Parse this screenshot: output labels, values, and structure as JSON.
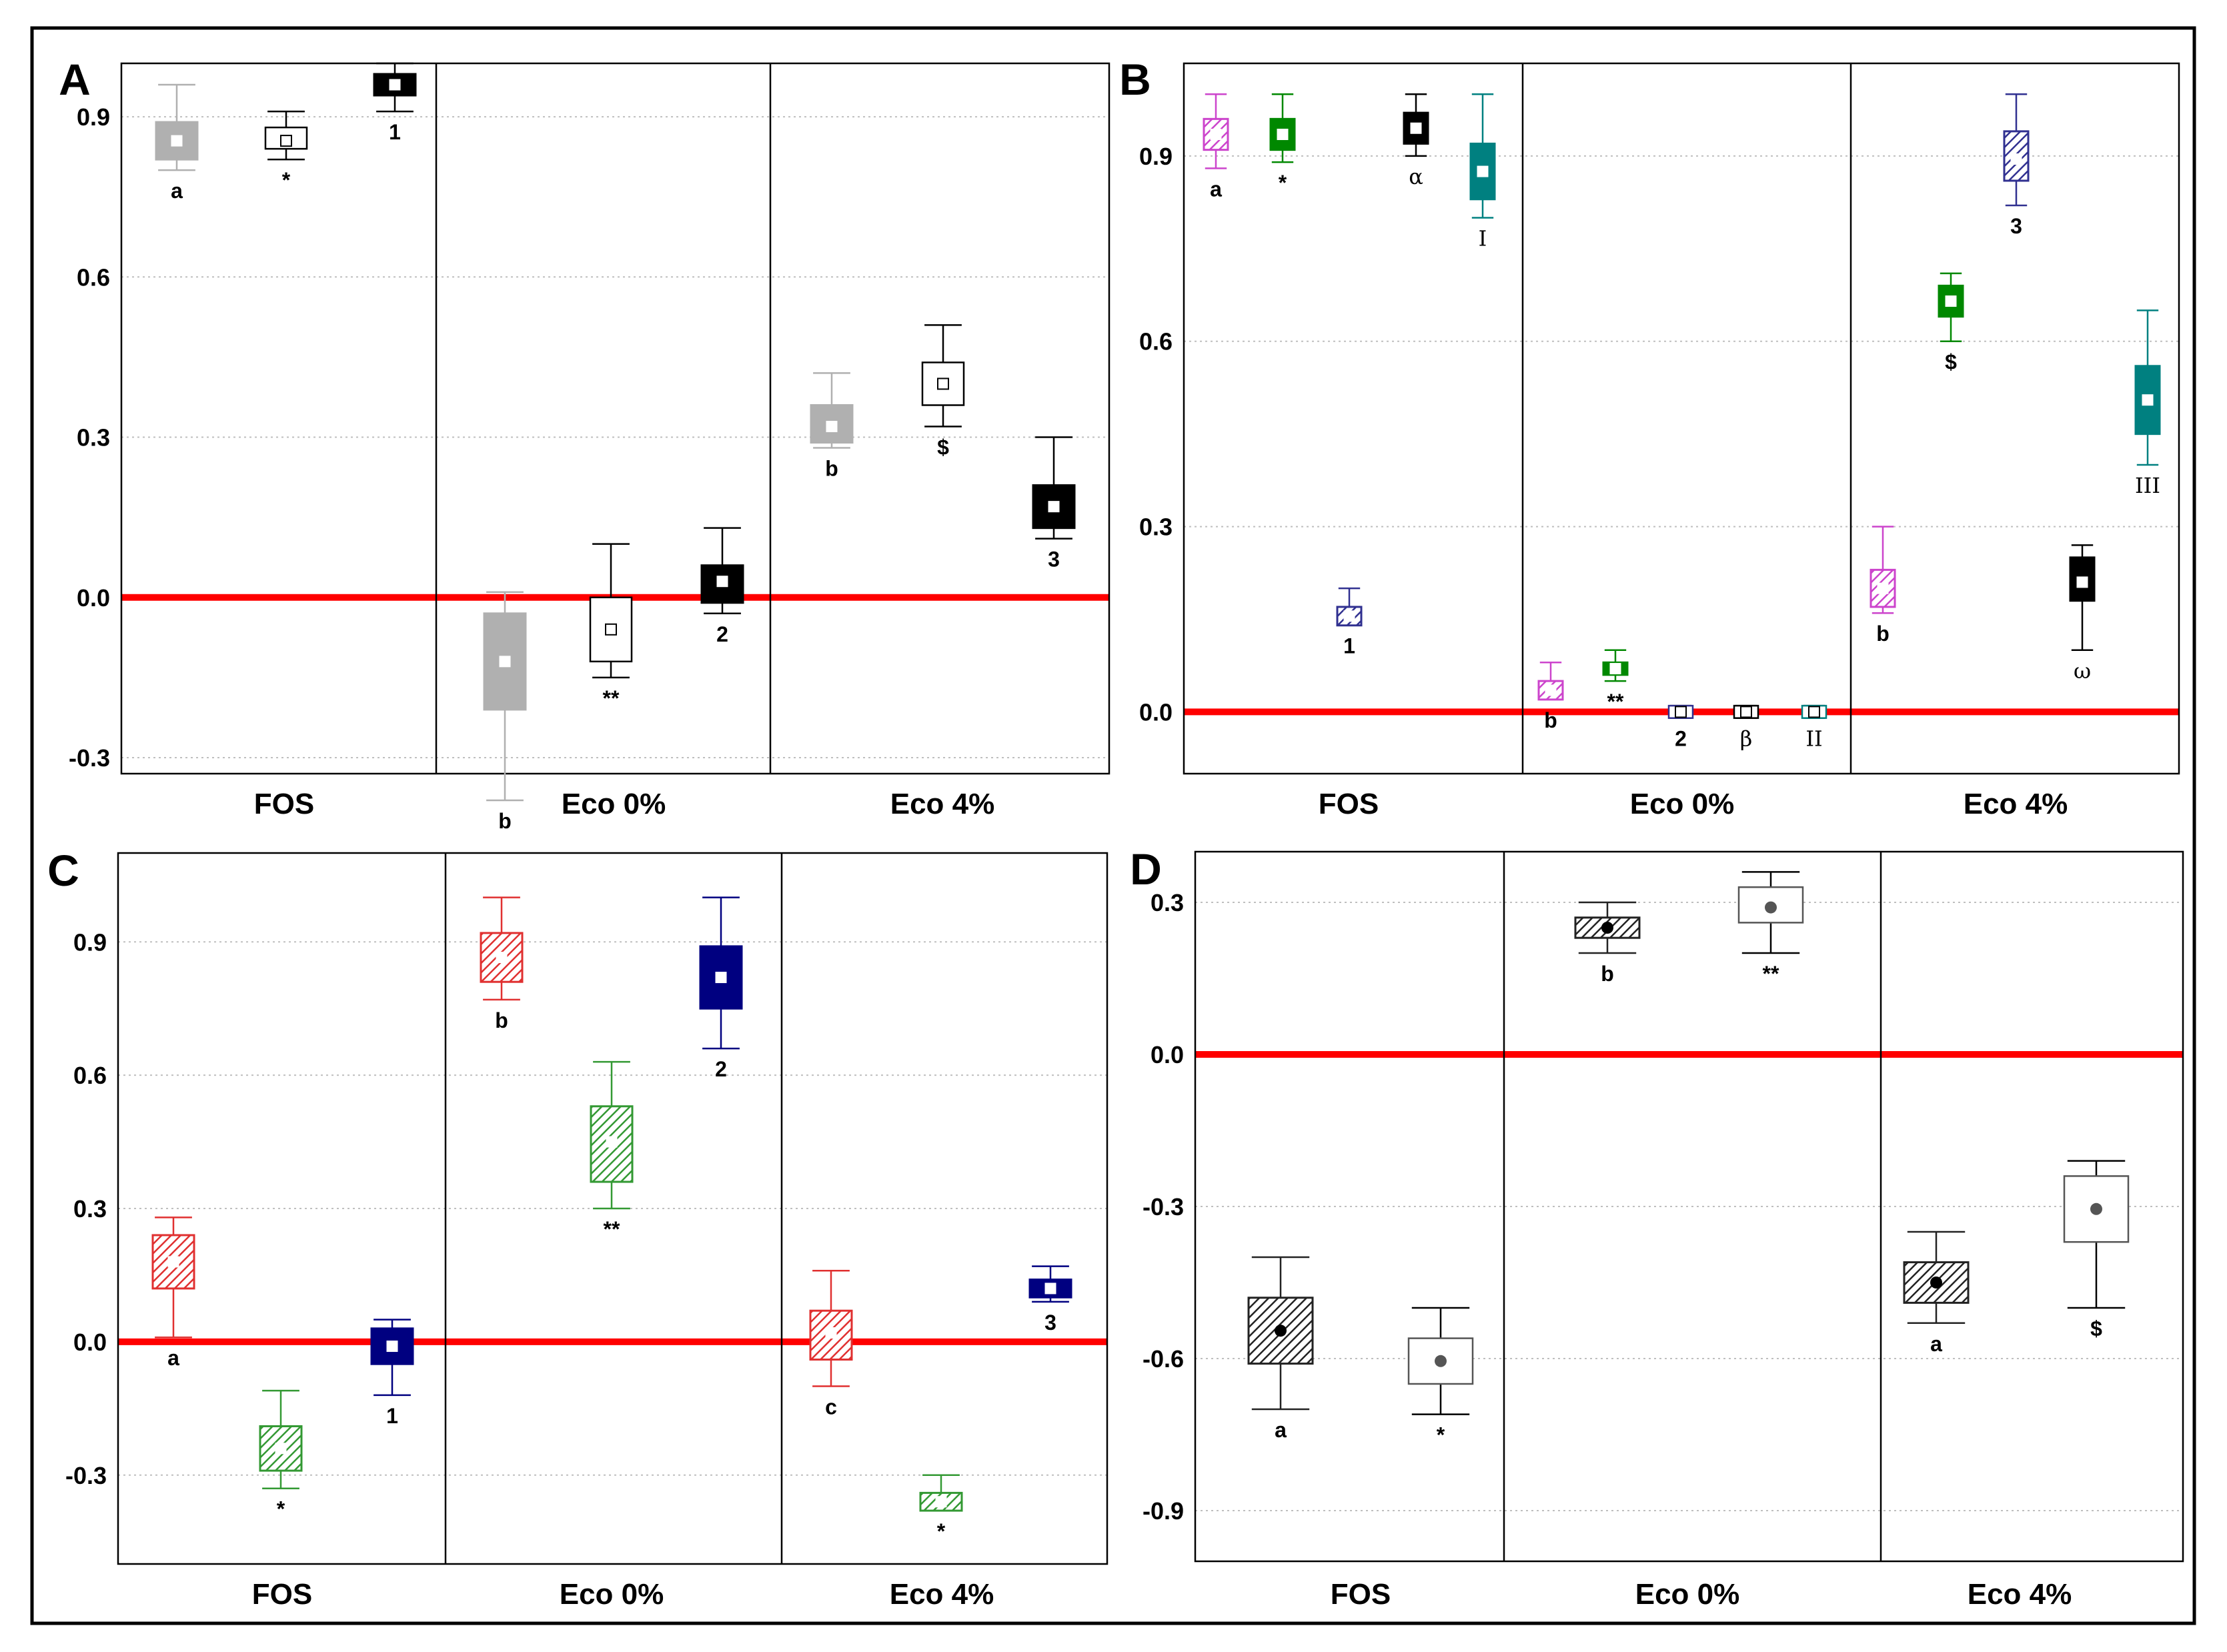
{
  "figure": {
    "panel_letters": [
      "A",
      "B",
      "C",
      "D"
    ],
    "group_labels": [
      "FOS",
      "Eco 0%",
      "Eco 4%"
    ]
  },
  "chart_data": [
    {
      "type": "box",
      "panel": "A",
      "title": "",
      "xlabel": "",
      "ylabel": "",
      "ylim": [
        -0.33,
        1.0
      ],
      "yticks": [
        -0.3,
        0.0,
        0.3,
        0.6,
        0.9
      ],
      "ytick_labels": [
        "-0.3",
        "0.0",
        "0.3",
        "0.6",
        "0.9"
      ],
      "groups": [
        "FOS",
        "Eco 0%",
        "Eco 4%"
      ],
      "reference_line": 0.0,
      "grid": true,
      "boxes": [
        {
          "group": "FOS",
          "slot": 0,
          "color": "#b0b0b0",
          "style": "solid",
          "q1": 0.82,
          "q3": 0.89,
          "mean": 0.855,
          "min": 0.8,
          "max": 0.96,
          "label": "a"
        },
        {
          "group": "FOS",
          "slot": 1,
          "color": "#000000",
          "style": "open",
          "q1": 0.84,
          "q3": 0.88,
          "mean": 0.855,
          "min": 0.82,
          "max": 0.91,
          "label": "*"
        },
        {
          "group": "FOS",
          "slot": 2,
          "color": "#000000",
          "style": "solid",
          "q1": 0.94,
          "q3": 0.98,
          "mean": 0.96,
          "min": 0.91,
          "max": 1.0,
          "label": "1"
        },
        {
          "group": "Eco 0%",
          "slot": 0,
          "color": "#b0b0b0",
          "style": "solid",
          "q1": -0.21,
          "q3": -0.03,
          "mean": -0.12,
          "min": -0.38,
          "max": 0.01,
          "label": "b"
        },
        {
          "group": "Eco 0%",
          "slot": 1,
          "color": "#000000",
          "style": "open",
          "q1": -0.12,
          "q3": 0.0,
          "mean": -0.06,
          "min": -0.15,
          "max": 0.1,
          "label": "**"
        },
        {
          "group": "Eco 0%",
          "slot": 2,
          "color": "#000000",
          "style": "solid",
          "q1": -0.01,
          "q3": 0.06,
          "mean": 0.03,
          "min": -0.03,
          "max": 0.13,
          "label": "2"
        },
        {
          "group": "Eco 4%",
          "slot": 0,
          "color": "#b0b0b0",
          "style": "solid",
          "q1": 0.29,
          "q3": 0.36,
          "mean": 0.32,
          "min": 0.28,
          "max": 0.42,
          "label": "b"
        },
        {
          "group": "Eco 4%",
          "slot": 1,
          "color": "#000000",
          "style": "open",
          "q1": 0.36,
          "q3": 0.44,
          "mean": 0.4,
          "min": 0.32,
          "max": 0.51,
          "label": "$"
        },
        {
          "group": "Eco 4%",
          "slot": 2,
          "color": "#000000",
          "style": "solid",
          "q1": 0.13,
          "q3": 0.21,
          "mean": 0.17,
          "min": 0.11,
          "max": 0.3,
          "label": "3"
        }
      ]
    },
    {
      "type": "box",
      "panel": "B",
      "title": "",
      "xlabel": "",
      "ylabel": "",
      "ylim": [
        -0.1,
        1.05
      ],
      "yticks": [
        0.0,
        0.3,
        0.6,
        0.9
      ],
      "ytick_labels": [
        "0.0",
        "0.3",
        "0.6",
        "0.9"
      ],
      "groups": [
        "FOS",
        "Eco 0%",
        "Eco 4%"
      ],
      "reference_line": 0.0,
      "grid": true,
      "boxes": [
        {
          "group": "FOS",
          "slot": 0,
          "color": "#cc44cc",
          "style": "hatched",
          "q1": 0.91,
          "q3": 0.96,
          "mean": 0.935,
          "min": 0.88,
          "max": 1.0,
          "label": "a"
        },
        {
          "group": "FOS",
          "slot": 1,
          "color": "#008800",
          "style": "solid",
          "q1": 0.91,
          "q3": 0.96,
          "mean": 0.935,
          "min": 0.89,
          "max": 1.0,
          "label": "*"
        },
        {
          "group": "FOS",
          "slot": 2,
          "color": "#303090",
          "style": "hatched",
          "q1": 0.14,
          "q3": 0.17,
          "mean": 0.155,
          "min": 0.14,
          "max": 0.2,
          "label": "1"
        },
        {
          "group": "FOS",
          "slot": 3,
          "color": "#000000",
          "style": "solid",
          "q1": 0.92,
          "q3": 0.97,
          "mean": 0.945,
          "min": 0.9,
          "max": 1.0,
          "label": "α"
        },
        {
          "group": "FOS",
          "slot": 4,
          "color": "#008080",
          "style": "solid",
          "q1": 0.83,
          "q3": 0.92,
          "mean": 0.875,
          "min": 0.8,
          "max": 1.0,
          "label": "I"
        },
        {
          "group": "Eco 0%",
          "slot": 0,
          "color": "#cc44cc",
          "style": "hatched",
          "q1": 0.02,
          "q3": 0.05,
          "mean": 0.035,
          "min": 0.02,
          "max": 0.08,
          "label": "b"
        },
        {
          "group": "Eco 0%",
          "slot": 1,
          "color": "#008800",
          "style": "solid",
          "q1": 0.06,
          "q3": 0.08,
          "mean": 0.07,
          "min": 0.05,
          "max": 0.1,
          "label": "**"
        },
        {
          "group": "Eco 0%",
          "slot": 2,
          "color": "#303090",
          "style": "open",
          "q1": -0.01,
          "q3": 0.01,
          "mean": 0.0,
          "min": -0.01,
          "max": 0.01,
          "label": "2"
        },
        {
          "group": "Eco 0%",
          "slot": 3,
          "color": "#000000",
          "style": "open",
          "q1": -0.01,
          "q3": 0.01,
          "mean": 0.0,
          "min": -0.01,
          "max": 0.01,
          "label": "β"
        },
        {
          "group": "Eco 0%",
          "slot": 4,
          "color": "#008080",
          "style": "open",
          "q1": -0.01,
          "q3": 0.01,
          "mean": 0.0,
          "min": -0.01,
          "max": 0.01,
          "label": "II"
        },
        {
          "group": "Eco 4%",
          "slot": 0,
          "color": "#cc44cc",
          "style": "hatched",
          "q1": 0.17,
          "q3": 0.23,
          "mean": 0.2,
          "min": 0.16,
          "max": 0.3,
          "label": "b"
        },
        {
          "group": "Eco 4%",
          "slot": 1,
          "color": "#008800",
          "style": "solid",
          "q1": 0.64,
          "q3": 0.69,
          "mean": 0.665,
          "min": 0.6,
          "max": 0.71,
          "label": "$"
        },
        {
          "group": "Eco 4%",
          "slot": 2,
          "color": "#303090",
          "style": "hatched",
          "q1": 0.86,
          "q3": 0.94,
          "mean": 0.895,
          "min": 0.82,
          "max": 1.0,
          "label": "3"
        },
        {
          "group": "Eco 4%",
          "slot": 3,
          "color": "#000000",
          "style": "solid",
          "q1": 0.18,
          "q3": 0.25,
          "mean": 0.21,
          "min": 0.1,
          "max": 0.27,
          "label": "ω"
        },
        {
          "group": "Eco 4%",
          "slot": 4,
          "color": "#008080",
          "style": "solid",
          "q1": 0.45,
          "q3": 0.56,
          "mean": 0.505,
          "min": 0.4,
          "max": 0.65,
          "label": "III"
        }
      ]
    },
    {
      "type": "box",
      "panel": "C",
      "title": "",
      "xlabel": "",
      "ylabel": "",
      "ylim": [
        -0.5,
        1.1
      ],
      "yticks": [
        -0.3,
        0.0,
        0.3,
        0.6,
        0.9
      ],
      "ytick_labels": [
        "-0.3",
        "0.0",
        "0.3",
        "0.6",
        "0.9"
      ],
      "groups": [
        "FOS",
        "Eco 0%",
        "Eco 4%"
      ],
      "reference_line": 0.0,
      "grid": true,
      "boxes": [
        {
          "group": "FOS",
          "slot": 0,
          "color": "#e03030",
          "style": "hatched",
          "q1": 0.12,
          "q3": 0.24,
          "mean": 0.18,
          "min": 0.01,
          "max": 0.28,
          "label": "a"
        },
        {
          "group": "FOS",
          "slot": 1,
          "color": "#339933",
          "style": "hatched",
          "q1": -0.29,
          "q3": -0.19,
          "mean": -0.24,
          "min": -0.33,
          "max": -0.11,
          "label": "*"
        },
        {
          "group": "FOS",
          "slot": 2,
          "color": "#000080",
          "style": "solid",
          "q1": -0.05,
          "q3": 0.03,
          "mean": -0.01,
          "min": -0.12,
          "max": 0.05,
          "label": "1"
        },
        {
          "group": "Eco 0%",
          "slot": 0,
          "color": "#e03030",
          "style": "hatched",
          "q1": 0.81,
          "q3": 0.92,
          "mean": 0.865,
          "min": 0.77,
          "max": 1.0,
          "label": "b"
        },
        {
          "group": "Eco 0%",
          "slot": 1,
          "color": "#339933",
          "style": "hatched",
          "q1": 0.36,
          "q3": 0.53,
          "mean": 0.45,
          "min": 0.3,
          "max": 0.63,
          "label": "**"
        },
        {
          "group": "Eco 0%",
          "slot": 2,
          "color": "#000080",
          "style": "solid",
          "q1": 0.75,
          "q3": 0.89,
          "mean": 0.82,
          "min": 0.66,
          "max": 1.0,
          "label": "2"
        },
        {
          "group": "Eco 4%",
          "slot": 0,
          "color": "#e03030",
          "style": "hatched",
          "q1": -0.04,
          "q3": 0.07,
          "mean": 0.02,
          "min": -0.1,
          "max": 0.16,
          "label": "c"
        },
        {
          "group": "Eco 4%",
          "slot": 1,
          "color": "#339933",
          "style": "hatched",
          "q1": -0.38,
          "q3": -0.34,
          "mean": -0.36,
          "min": -0.38,
          "max": -0.3,
          "label": "*"
        },
        {
          "group": "Eco 4%",
          "slot": 2,
          "color": "#000080",
          "style": "solid",
          "q1": 0.1,
          "q3": 0.14,
          "mean": 0.12,
          "min": 0.09,
          "max": 0.17,
          "label": "3"
        }
      ]
    },
    {
      "type": "box",
      "panel": "D",
      "title": "",
      "xlabel": "",
      "ylabel": "",
      "ylim": [
        -1.0,
        0.4
      ],
      "yticks": [
        -0.9,
        -0.6,
        -0.3,
        0.0,
        0.3
      ],
      "ytick_labels": [
        "-0.9",
        "-0.6",
        "-0.3",
        "0.0",
        "0.3"
      ],
      "groups": [
        "FOS",
        "Eco 0%",
        "Eco 4%"
      ],
      "reference_line": 0.0,
      "grid": true,
      "boxes": [
        {
          "group": "FOS",
          "slot": 0,
          "color": "#222222",
          "style": "hatched",
          "q1": -0.61,
          "q3": -0.48,
          "mean": -0.545,
          "min": -0.7,
          "max": -0.4,
          "label": "a"
        },
        {
          "group": "FOS",
          "slot": 1,
          "color": "#555555",
          "style": "open",
          "q1": -0.65,
          "q3": -0.56,
          "mean": -0.605,
          "min": -0.71,
          "max": -0.5,
          "label": "*"
        },
        {
          "group": "Eco 0%",
          "slot": 0,
          "color": "#222222",
          "style": "hatched",
          "q1": 0.23,
          "q3": 0.27,
          "mean": 0.25,
          "min": 0.2,
          "max": 0.3,
          "label": "b"
        },
        {
          "group": "Eco 0%",
          "slot": 1,
          "color": "#555555",
          "style": "open",
          "q1": 0.26,
          "q3": 0.33,
          "mean": 0.29,
          "min": 0.2,
          "max": 0.36,
          "label": "**"
        },
        {
          "group": "Eco 4%",
          "slot": 0,
          "color": "#222222",
          "style": "hatched",
          "q1": -0.49,
          "q3": -0.41,
          "mean": -0.45,
          "min": -0.53,
          "max": -0.35,
          "label": "a"
        },
        {
          "group": "Eco 4%",
          "slot": 1,
          "color": "#555555",
          "style": "open",
          "q1": -0.37,
          "q3": -0.24,
          "mean": -0.305,
          "min": -0.5,
          "max": -0.21,
          "label": "$"
        }
      ]
    }
  ]
}
